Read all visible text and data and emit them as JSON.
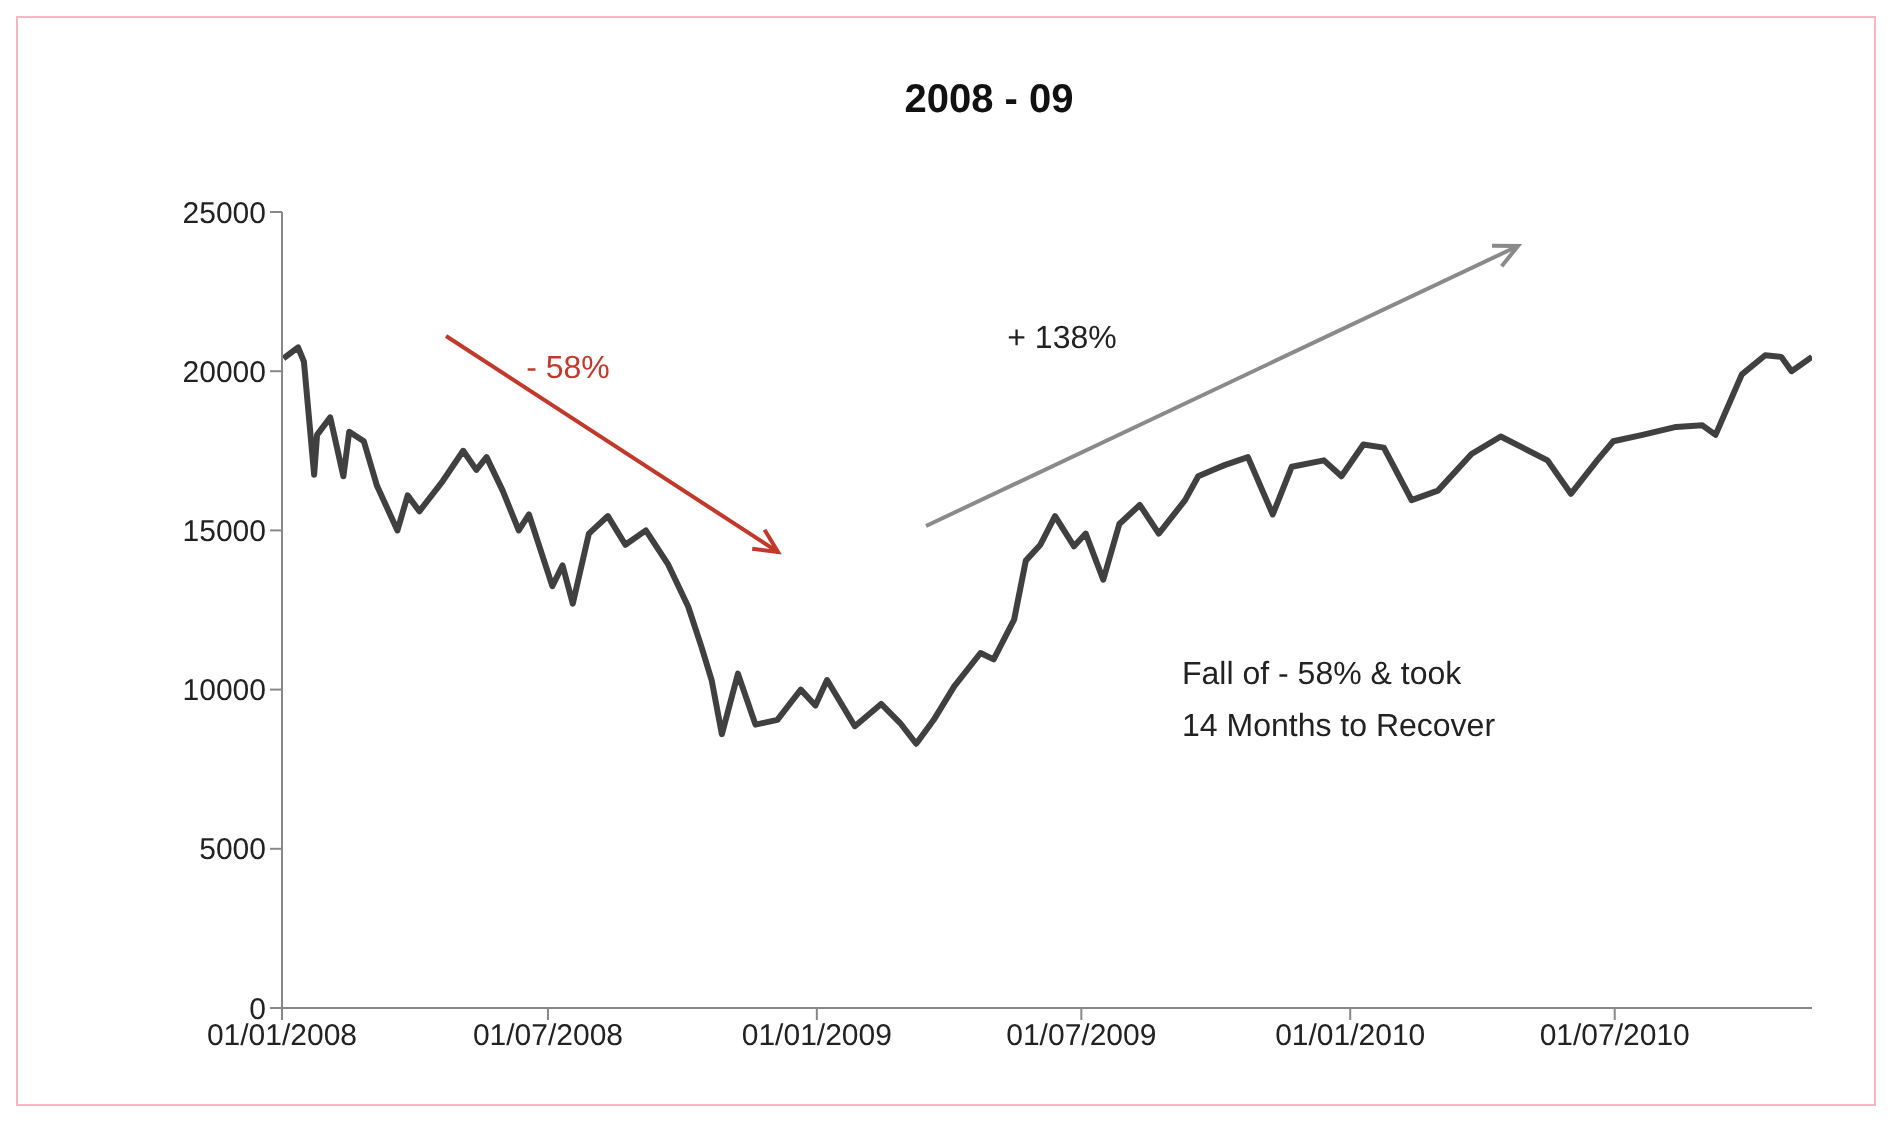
{
  "chart_data": {
    "type": "line",
    "title": "2008 - 09",
    "annotations": [
      "- 58%",
      "+ 138%",
      "Fall of - 58% & took\n14 Months to Recover"
    ],
    "x": [
      "2008-01-02",
      "2008-01-12",
      "2008-01-16",
      "2008-01-23",
      "2008-01-25",
      "2008-02-03",
      "2008-02-12",
      "2008-02-16",
      "2008-02-26",
      "2008-03-06",
      "2008-03-20",
      "2008-03-27",
      "2008-04-04",
      "2008-04-20",
      "2008-05-04",
      "2008-05-13",
      "2008-05-20",
      "2008-05-31",
      "2008-06-11",
      "2008-06-18",
      "2008-07-04",
      "2008-07-11",
      "2008-07-18",
      "2008-07-29",
      "2008-08-11",
      "2008-08-23",
      "2008-09-06",
      "2008-09-21",
      "2008-10-05",
      "2008-10-14",
      "2008-10-21",
      "2008-10-28",
      "2008-11-08",
      "2008-11-20",
      "2008-12-05",
      "2008-12-21",
      "2008-12-31",
      "2009-01-08",
      "2009-01-27",
      "2009-02-14",
      "2009-02-27",
      "2009-03-10",
      "2009-03-22",
      "2009-04-05",
      "2009-04-23",
      "2009-05-02",
      "2009-05-16",
      "2009-05-24",
      "2009-06-03",
      "2009-06-13",
      "2009-06-26",
      "2009-07-04",
      "2009-07-16",
      "2009-07-27",
      "2009-08-10",
      "2009-08-23",
      "2009-09-10",
      "2009-09-19",
      "2009-09-29",
      "2009-10-07",
      "2009-10-23",
      "2009-11-09",
      "2009-11-22",
      "2009-12-14",
      "2009-12-26",
      "2010-01-10",
      "2010-01-24",
      "2010-02-12",
      "2010-03-02",
      "2010-03-25",
      "2010-04-14",
      "2010-04-29",
      "2010-05-16",
      "2010-06-01",
      "2010-06-19",
      "2010-06-30",
      "2010-07-20",
      "2010-08-12",
      "2010-08-30",
      "2010-09-08",
      "2010-09-26",
      "2010-10-12",
      "2010-10-23",
      "2010-10-30",
      "2010-11-13"
    ],
    "series": [
      {
        "color": "#404040",
        "values": [
          20400,
          20750,
          20300,
          16750,
          18000,
          18550,
          16700,
          18100,
          17800,
          16400,
          15000,
          16100,
          15600,
          16550,
          17500,
          16900,
          17300,
          16250,
          15000,
          15500,
          13250,
          13900,
          12700,
          14900,
          15450,
          14550,
          15000,
          13950,
          12600,
          11350,
          10300,
          8600,
          10500,
          8900,
          9050,
          10000,
          9500,
          10300,
          8850,
          9550,
          8950,
          8300,
          9050,
          10100,
          11150,
          10950,
          12200,
          14050,
          14550,
          15450,
          14500,
          14900,
          13450,
          15200,
          15800,
          14900,
          15950,
          16700,
          16900,
          17050,
          17300,
          15500,
          17000,
          17200,
          16700,
          17700,
          17600,
          15950,
          16250,
          17400,
          17950,
          17600,
          17200,
          16150,
          17200,
          17800,
          18000,
          18250,
          18300,
          18000,
          19900,
          20500,
          20450,
          20000,
          20450
        ]
      }
    ],
    "xlim": [
      "2008-01-01",
      "2010-11-13"
    ],
    "xticks": [
      {
        "value": "2008-01-01",
        "label": "01/01/2008"
      },
      {
        "value": "2008-07-01",
        "label": "01/07/2008"
      },
      {
        "value": "2009-01-01",
        "label": "01/01/2009"
      },
      {
        "value": "2009-07-01",
        "label": "01/07/2009"
      },
      {
        "value": "2010-01-01",
        "label": "01/01/2010"
      },
      {
        "value": "2010-07-01",
        "label": "01/07/2010"
      }
    ],
    "ylim": [
      0,
      25000
    ],
    "yticks": [
      0,
      5000,
      10000,
      15000,
      20000,
      25000
    ],
    "grid": false,
    "legend": false,
    "marker": "none",
    "line_style": "solid"
  }
}
